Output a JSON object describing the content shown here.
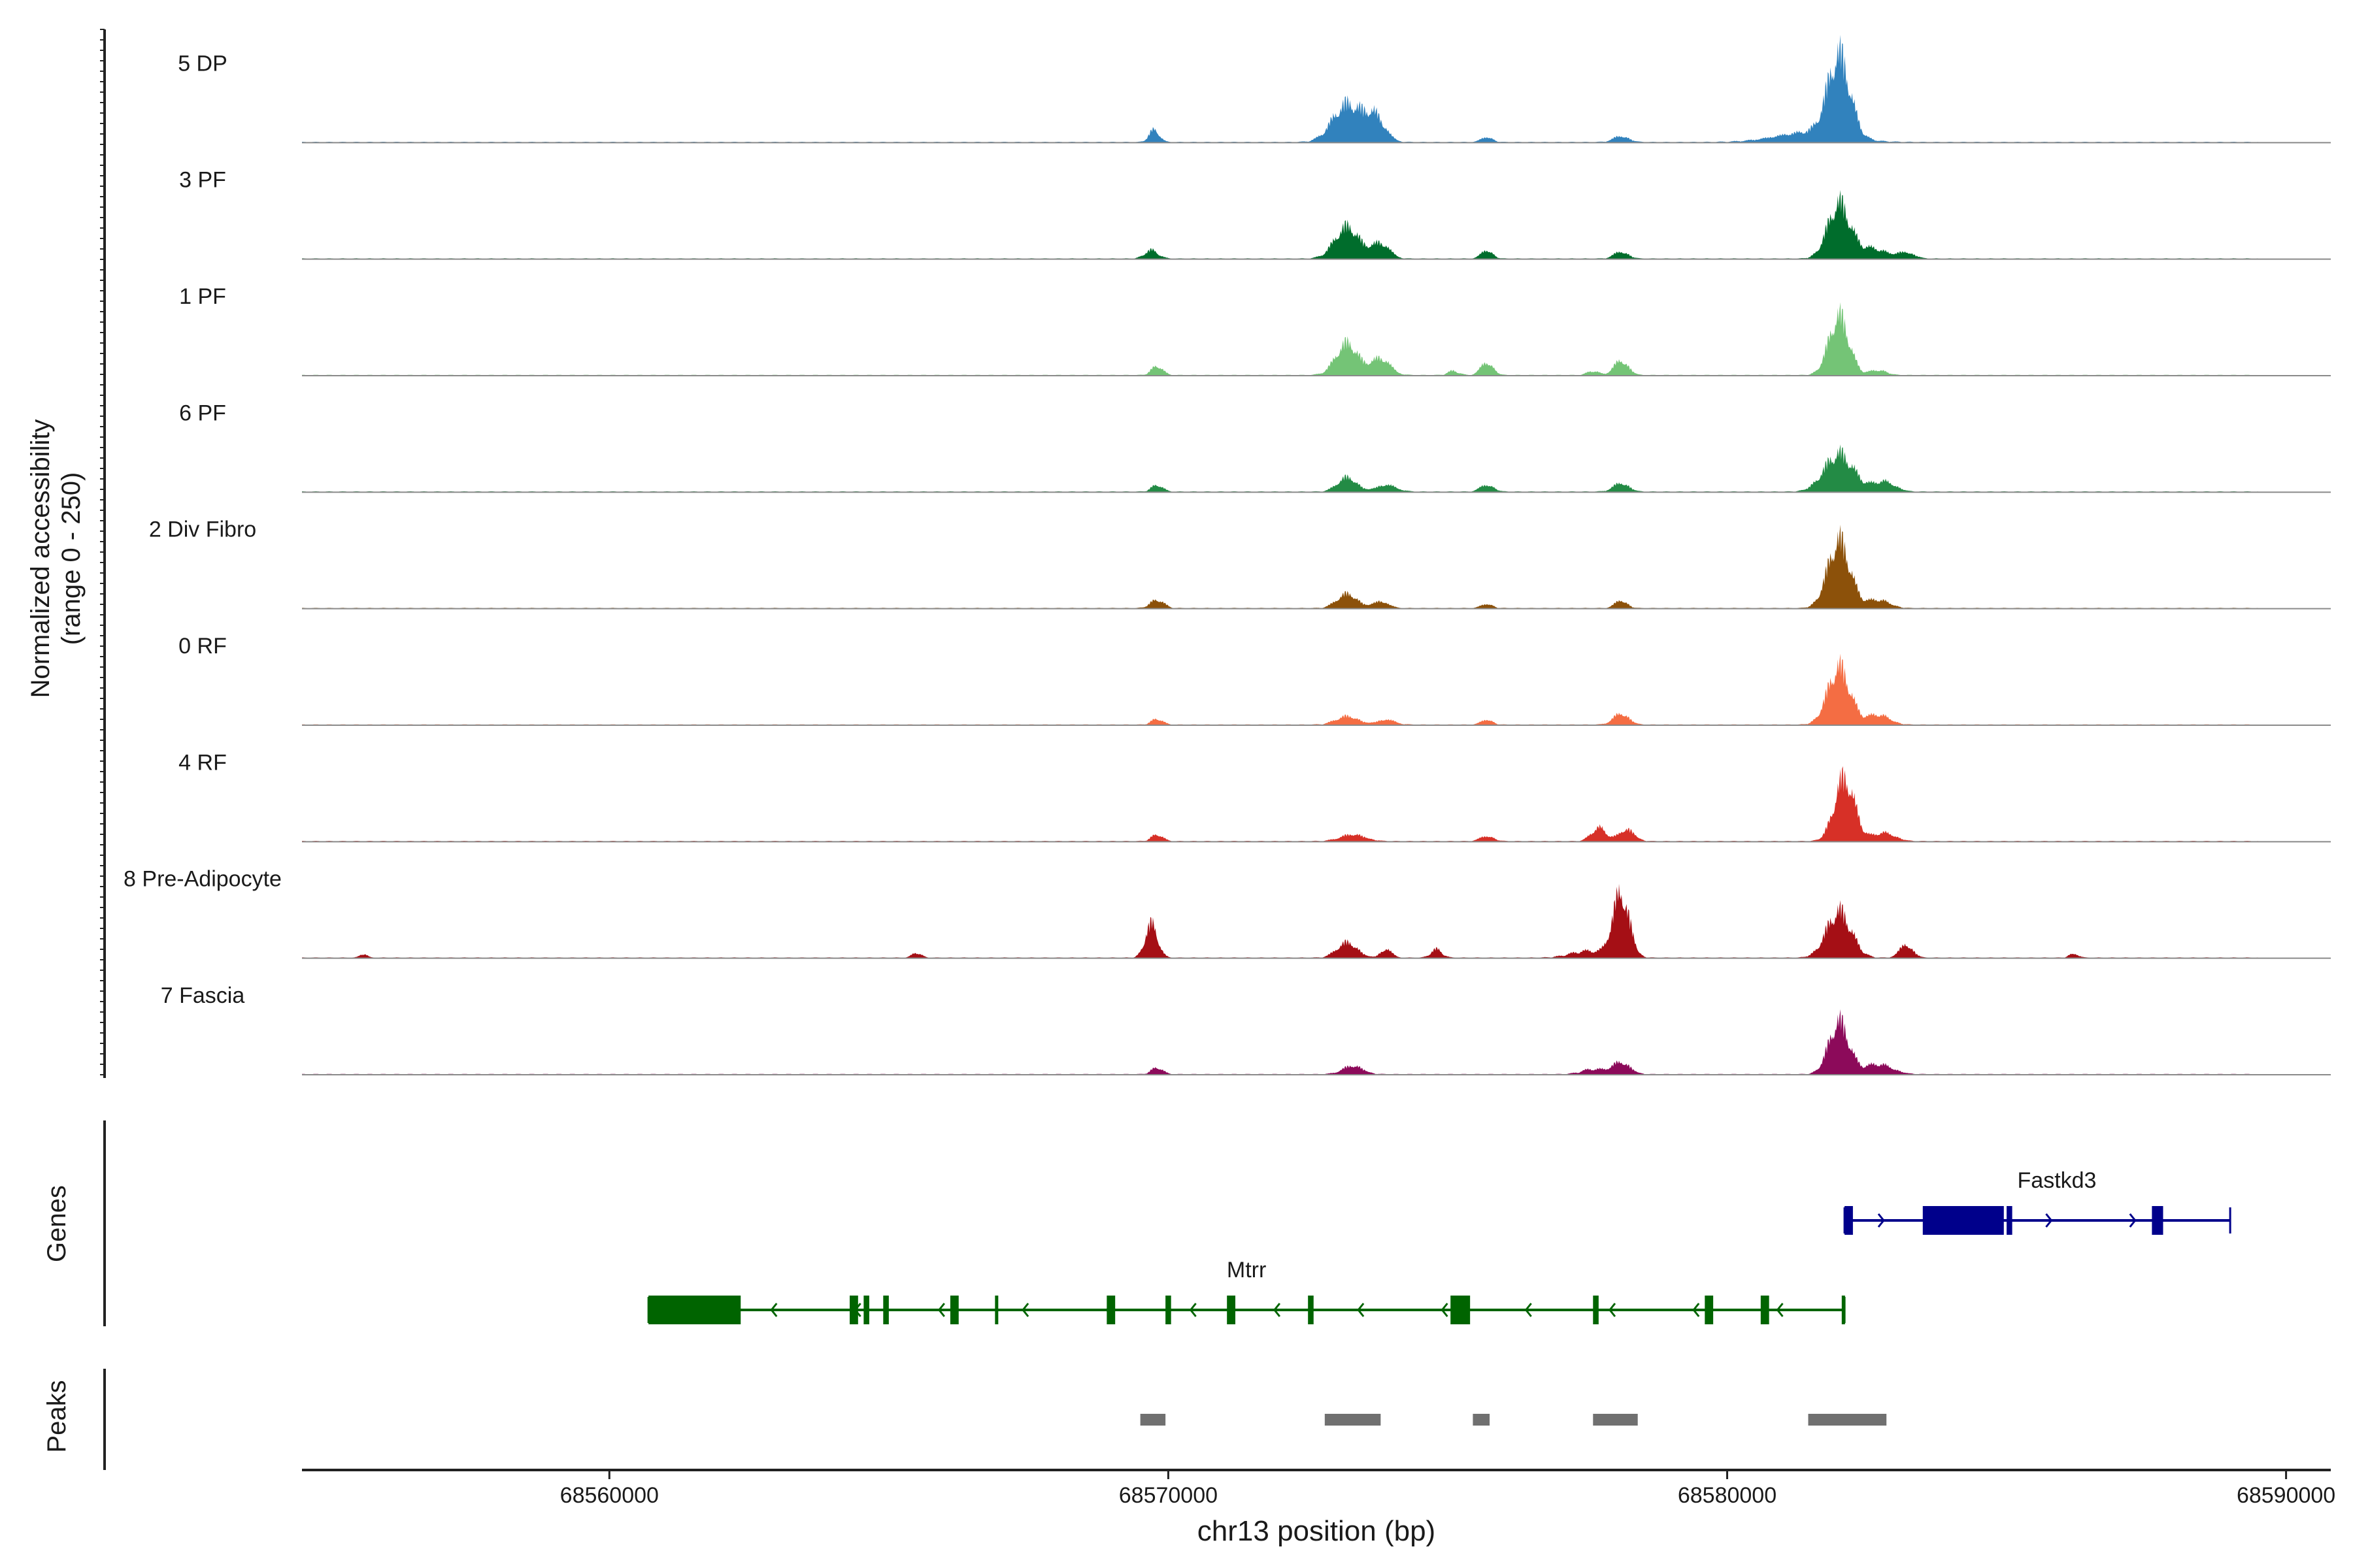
{
  "chart_data": {
    "type": "area",
    "title": "",
    "ylabel_line1": "Normalized accessibility",
    "ylabel_line2": "(range 0 - 250)",
    "ylim": [
      0,
      250
    ],
    "xlabel": "chr13 position (bp)",
    "xlim": [
      68554500,
      68590800
    ],
    "x_ticks": [
      68560000,
      68570000,
      68580000,
      68590000
    ],
    "x_tick_labels": [
      "68560000",
      "68570000",
      "68580000",
      "68590000"
    ],
    "tracks": [
      {
        "name": "5 DP",
        "color": "#3182bd",
        "peaks": [
          [
            68569750,
            0.15,
            90
          ],
          [
            68573200,
            0.45,
            260
          ],
          [
            68573700,
            0.28,
            180
          ],
          [
            68575700,
            0.06,
            100
          ],
          [
            68578100,
            0.07,
            140
          ],
          [
            68582000,
            0.95,
            200
          ],
          [
            68581500,
            0.12,
            600
          ]
        ]
      },
      {
        "name": "3 PF",
        "color": "#006d2c",
        "peaks": [
          [
            68569700,
            0.1,
            120
          ],
          [
            68573200,
            0.38,
            220
          ],
          [
            68573800,
            0.18,
            160
          ],
          [
            68575700,
            0.1,
            100
          ],
          [
            68578100,
            0.08,
            130
          ],
          [
            68582000,
            0.65,
            200
          ],
          [
            68582600,
            0.12,
            250
          ],
          [
            68583200,
            0.07,
            150
          ]
        ]
      },
      {
        "name": "1 PF",
        "color": "#74c476",
        "peaks": [
          [
            68569800,
            0.11,
            100
          ],
          [
            68573200,
            0.38,
            200
          ],
          [
            68573800,
            0.2,
            170
          ],
          [
            68575100,
            0.05,
            100
          ],
          [
            68575700,
            0.15,
            110
          ],
          [
            68577600,
            0.05,
            100
          ],
          [
            68578100,
            0.17,
            130
          ],
          [
            68582000,
            0.7,
            180
          ],
          [
            68582700,
            0.06,
            150
          ]
        ]
      },
      {
        "name": "6 PF",
        "color": "#238b45",
        "peaks": [
          [
            68569800,
            0.08,
            100
          ],
          [
            68573200,
            0.17,
            170
          ],
          [
            68573900,
            0.08,
            180
          ],
          [
            68575700,
            0.08,
            120
          ],
          [
            68578100,
            0.1,
            140
          ],
          [
            68582000,
            0.45,
            260
          ],
          [
            68582800,
            0.12,
            200
          ]
        ]
      },
      {
        "name": "2 Div Fibro",
        "color": "#8c510a",
        "peaks": [
          [
            68569800,
            0.1,
            120
          ],
          [
            68573200,
            0.17,
            180
          ],
          [
            68573800,
            0.08,
            140
          ],
          [
            68575700,
            0.05,
            100
          ],
          [
            68578100,
            0.09,
            110
          ],
          [
            68582000,
            0.8,
            200
          ],
          [
            68582700,
            0.1,
            200
          ]
        ]
      },
      {
        "name": "0 RF",
        "color": "#f46d43",
        "peaks": [
          [
            68569800,
            0.07,
            100
          ],
          [
            68573200,
            0.1,
            200
          ],
          [
            68573900,
            0.06,
            160
          ],
          [
            68575700,
            0.06,
            100
          ],
          [
            68578100,
            0.13,
            140
          ],
          [
            68582000,
            0.68,
            200
          ],
          [
            68582700,
            0.12,
            200
          ]
        ]
      },
      {
        "name": "4 RF",
        "color": "#d73027",
        "peaks": [
          [
            68569800,
            0.08,
            100
          ],
          [
            68573300,
            0.08,
            220
          ],
          [
            68575700,
            0.06,
            120
          ],
          [
            68577700,
            0.16,
            130
          ],
          [
            68578200,
            0.14,
            140
          ],
          [
            68582100,
            0.75,
            180
          ],
          [
            68582800,
            0.1,
            200
          ]
        ]
      },
      {
        "name": "8 Pre-Adipocyte",
        "color": "#a50f15",
        "peaks": [
          [
            68569700,
            0.4,
            110
          ],
          [
            68573200,
            0.18,
            180
          ],
          [
            68573900,
            0.1,
            100
          ],
          [
            68574800,
            0.1,
            100
          ],
          [
            68577500,
            0.08,
            300
          ],
          [
            68578100,
            0.75,
            150
          ],
          [
            68582000,
            0.55,
            220
          ],
          [
            68583200,
            0.15,
            120
          ],
          [
            68555600,
            0.05,
            60
          ],
          [
            68565500,
            0.06,
            80
          ],
          [
            68586200,
            0.05,
            80
          ]
        ]
      },
      {
        "name": "7 Fascia",
        "color": "#8c0a5a",
        "peaks": [
          [
            68569800,
            0.08,
            100
          ],
          [
            68573300,
            0.1,
            180
          ],
          [
            68577600,
            0.06,
            200
          ],
          [
            68578100,
            0.14,
            160
          ],
          [
            68582000,
            0.62,
            180
          ],
          [
            68582700,
            0.12,
            250
          ]
        ]
      }
    ],
    "genes_label": "Genes",
    "genes": [
      {
        "name": "Fastkd3",
        "color": "#00008b",
        "start": 68582100,
        "end": 68589000,
        "strand": "+",
        "thick": [
          [
            68583500,
            68584950
          ]
        ],
        "exons": [
          [
            68582100,
            68582250
          ],
          [
            68583500,
            68584950
          ],
          [
            68585000,
            68585100
          ],
          [
            68587600,
            68587800
          ]
        ]
      },
      {
        "name": "Mtrr",
        "color": "#006400",
        "start": 68560700,
        "end": 68582100,
        "strand": "-",
        "thick": [
          [
            68560700,
            68562350
          ]
        ],
        "exons": [
          [
            68560700,
            68562350
          ],
          [
            68564300,
            68564450
          ],
          [
            68564550,
            68564650
          ],
          [
            68564900,
            68565000
          ],
          [
            68566100,
            68566250
          ],
          [
            68566900,
            68566930
          ],
          [
            68568900,
            68569050
          ],
          [
            68569950,
            68570050
          ],
          [
            68571050,
            68571200
          ],
          [
            68572500,
            68572600
          ],
          [
            68575050,
            68575400
          ],
          [
            68577600,
            68577700
          ],
          [
            68579600,
            68579750
          ],
          [
            68580600,
            68580750
          ],
          [
            68582050,
            68582100
          ]
        ]
      }
    ],
    "peaks_label": "Peaks",
    "peak_regions": [
      [
        68569500,
        68569950
      ],
      [
        68572800,
        68573800
      ],
      [
        68575450,
        68575750
      ],
      [
        68577600,
        68578400
      ],
      [
        68581450,
        68582850
      ]
    ],
    "peak_region_color": "#707070"
  }
}
